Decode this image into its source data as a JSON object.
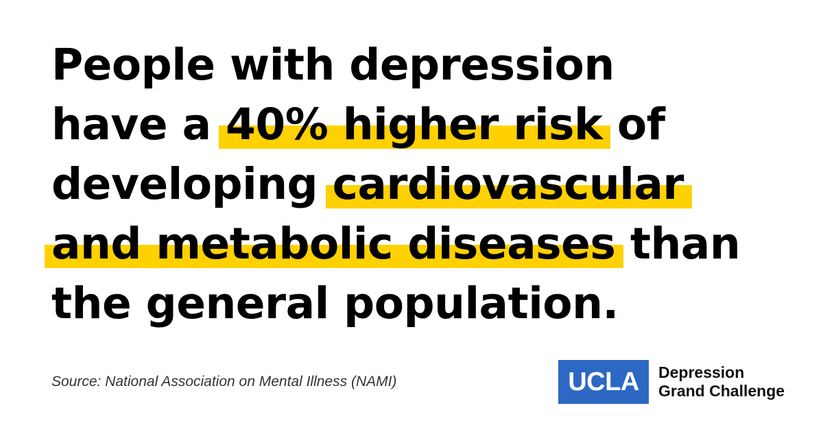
{
  "headline": {
    "line1": "People with depression",
    "line2_pre": "have a ",
    "line2_highlight": "40% higher risk",
    "line2_post": " of",
    "line3_pre": "developing ",
    "line3_highlight": "cardiovascular",
    "line4_highlight": "and metabolic diseases",
    "line4_post": " than",
    "line5": "the general population."
  },
  "source": "Source: National Association on Mental Illness (NAMI)",
  "logo": {
    "mark": "UCLA",
    "line1": "Depression",
    "line2": "Grand Challenge"
  },
  "colors": {
    "highlight": "#FFD100",
    "ucla_blue": "#2D68C4",
    "text": "#000000"
  }
}
